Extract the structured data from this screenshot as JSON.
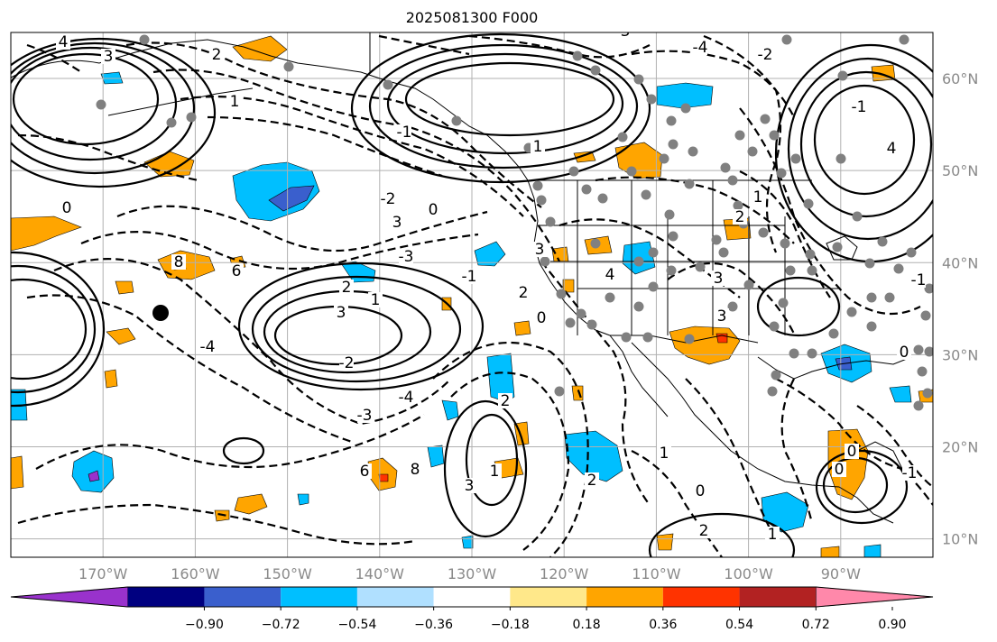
{
  "title": "2025081300 F000",
  "map": {
    "projection": "latlon",
    "lon_range": [
      -180,
      -80
    ],
    "lat_range": [
      8,
      65
    ],
    "lat_labels": [
      "60°N",
      "50°N",
      "40°N",
      "30°N",
      "20°N",
      "10°N"
    ],
    "lon_labels": [
      "170°W",
      "160°W",
      "150°W",
      "140°W",
      "130°W",
      "120°W",
      "110°W",
      "100°W",
      "90°W"
    ],
    "gridlines": true
  },
  "contour_labels": [
    "4",
    "3",
    "2",
    "1",
    "0",
    "-1",
    "-2",
    "-3",
    "-4",
    "6",
    "8",
    "3",
    "2",
    "1",
    "0",
    "3",
    "2",
    "1",
    "0",
    "-1"
  ],
  "colorbar": {
    "orientation": "horizontal",
    "extend": "both",
    "colors": [
      "#9932cc",
      "#000080",
      "#3a5fcd",
      "#00bfff",
      "#b0e0ff",
      "#ffffff",
      "#ffe88a",
      "#ffa500",
      "#ff3300",
      "#b22222",
      "#ff88aa"
    ],
    "tick_labels": [
      "−0.90",
      "−0.72",
      "−0.54",
      "−0.36",
      "−0.18",
      "0.18",
      "0.36",
      "0.54",
      "0.72",
      "0.90"
    ]
  },
  "markers": {
    "storm_center": "black-dot",
    "stations": "grey-dots"
  }
}
